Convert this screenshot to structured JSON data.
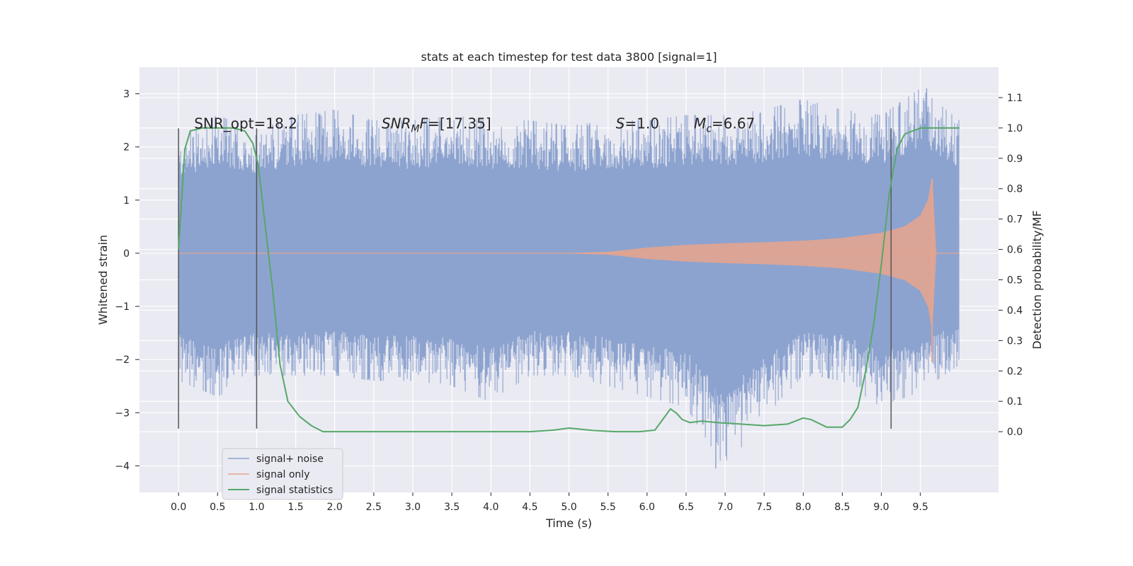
{
  "chart_data": {
    "type": "line",
    "title": "stats at each timestep for test data 3800 [signal=1]",
    "xlabel": "Time (s)",
    "ylabel": "Whitened strain",
    "y2label": "Detection probability/MF",
    "xlim": [
      -0.5,
      10.5
    ],
    "ylim": [
      -4.5,
      3.5
    ],
    "y2lim": [
      -0.2,
      1.2
    ],
    "xticks": [
      0.0,
      0.5,
      1.0,
      1.5,
      2.0,
      2.5,
      3.0,
      3.5,
      4.0,
      4.5,
      5.0,
      5.5,
      6.0,
      6.5,
      7.0,
      7.5,
      8.0,
      8.5,
      9.0,
      9.5
    ],
    "xtick_labels": [
      "0.0",
      "0.5",
      "1.0",
      "1.5",
      "2.0",
      "2.5",
      "3.0",
      "3.5",
      "4.0",
      "4.5",
      "5.0",
      "5.5",
      "6.0",
      "6.5",
      "7.0",
      "7.5",
      "8.0",
      "8.5",
      "9.0",
      "9.5"
    ],
    "yticks": [
      3,
      2,
      1,
      0,
      -1,
      -2,
      -3,
      -4
    ],
    "ytick_labels": [
      "3",
      "2",
      "1",
      "0",
      "−1",
      "−2",
      "−3",
      "−4"
    ],
    "y2ticks": [
      1.1,
      1.0,
      0.9,
      0.8,
      0.7,
      0.6,
      0.5,
      0.4,
      0.3,
      0.2,
      0.1,
      0.0
    ],
    "y2tick_labels": [
      "1.1",
      "1.0",
      "0.9",
      "0.8",
      "0.7",
      "0.6",
      "0.5",
      "0.4",
      "0.3",
      "0.2",
      "0.1",
      "0.0"
    ],
    "grid": true,
    "legend_position": "lower-left",
    "annotations": [
      {
        "text": "SNR_opt=18.2",
        "x": 0.2,
        "y": 2.35
      },
      {
        "text": "SNR",
        "sub": "M",
        "suffix": "F=[17.35]",
        "italic": true,
        "x": 2.6,
        "y": 2.35
      },
      {
        "text": "S",
        "suffix": "=1.0",
        "italic": true,
        "x": 5.6,
        "y": 2.35
      },
      {
        "text": "M",
        "sub": "c",
        "suffix": "=6.67",
        "italic": true,
        "x": 6.6,
        "y": 2.35
      }
    ],
    "vertical_lines": [
      {
        "x": 0.0,
        "y_range": [
          -3.3,
          2.35
        ]
      },
      {
        "x": 1.0,
        "y_range": [
          -3.3,
          2.35
        ]
      },
      {
        "x": 9.125,
        "y_range": [
          -3.3,
          2.35
        ]
      }
    ],
    "series": [
      {
        "name": "signal+ noise",
        "color": "#8da3cf",
        "axis": "left",
        "style": "noise-band",
        "x_range": [
          0.0,
          10.0
        ],
        "typical_amplitude": 1.2,
        "peak_min": -4.05,
        "peak_max": 3.1,
        "x": [
          0.0,
          0.5,
          1.0,
          1.5,
          2.0,
          2.5,
          3.0,
          3.5,
          4.0,
          4.5,
          5.0,
          5.5,
          6.0,
          6.5,
          7.0,
          7.5,
          8.0,
          8.5,
          9.0,
          9.5,
          10.0
        ],
        "upper_envelope": [
          2.2,
          2.6,
          2.3,
          2.6,
          2.7,
          2.5,
          2.5,
          2.6,
          2.5,
          2.5,
          2.4,
          2.5,
          2.5,
          2.6,
          2.6,
          2.7,
          2.9,
          2.7,
          2.6,
          3.1,
          2.5
        ],
        "lower_envelope": [
          -2.4,
          -2.7,
          -2.3,
          -2.3,
          -2.3,
          -2.4,
          -2.4,
          -2.5,
          -2.8,
          -2.3,
          -2.3,
          -2.5,
          -2.7,
          -2.9,
          -4.05,
          -3.1,
          -2.3,
          -2.4,
          -2.9,
          -2.6,
          -2.1
        ]
      },
      {
        "name": "signal only",
        "color": "#e8a58c",
        "axis": "left",
        "style": "chirp",
        "x": [
          0.0,
          5.0,
          5.5,
          6.0,
          6.5,
          7.0,
          7.5,
          8.0,
          8.5,
          9.0,
          9.3,
          9.5,
          9.6,
          9.65,
          9.7,
          10.0
        ],
        "envelope": [
          0.0,
          0.0,
          0.02,
          0.1,
          0.15,
          0.18,
          0.2,
          0.23,
          0.28,
          0.38,
          0.5,
          0.7,
          1.0,
          1.4,
          0.0,
          0.0
        ]
      },
      {
        "name": "signal statistics",
        "color": "#55a868",
        "axis": "right",
        "style": "line",
        "x": [
          0.0,
          0.08,
          0.15,
          0.3,
          0.5,
          0.7,
          0.85,
          0.95,
          1.02,
          1.1,
          1.2,
          1.3,
          1.4,
          1.55,
          1.7,
          1.85,
          2.0,
          2.2,
          2.5,
          3.0,
          3.5,
          4.0,
          4.5,
          4.8,
          5.0,
          5.3,
          5.6,
          5.9,
          6.1,
          6.2,
          6.3,
          6.38,
          6.45,
          6.55,
          6.7,
          6.9,
          7.2,
          7.5,
          7.8,
          8.0,
          8.1,
          8.3,
          8.5,
          8.6,
          8.7,
          8.8,
          8.9,
          9.0,
          9.1,
          9.2,
          9.3,
          9.5,
          9.7,
          10.0
        ],
        "values": [
          0.6,
          0.93,
          0.99,
          1.0,
          1.0,
          1.0,
          0.99,
          0.95,
          0.88,
          0.7,
          0.48,
          0.22,
          0.1,
          0.05,
          0.02,
          0.0,
          0.0,
          0.0,
          0.0,
          0.0,
          0.0,
          0.0,
          0.0,
          0.005,
          0.012,
          0.004,
          0.0,
          0.0,
          0.005,
          0.04,
          0.075,
          0.06,
          0.04,
          0.03,
          0.035,
          0.03,
          0.025,
          0.02,
          0.025,
          0.045,
          0.04,
          0.015,
          0.015,
          0.04,
          0.08,
          0.2,
          0.35,
          0.55,
          0.78,
          0.93,
          0.98,
          1.0,
          1.0,
          1.0
        ]
      }
    ]
  }
}
